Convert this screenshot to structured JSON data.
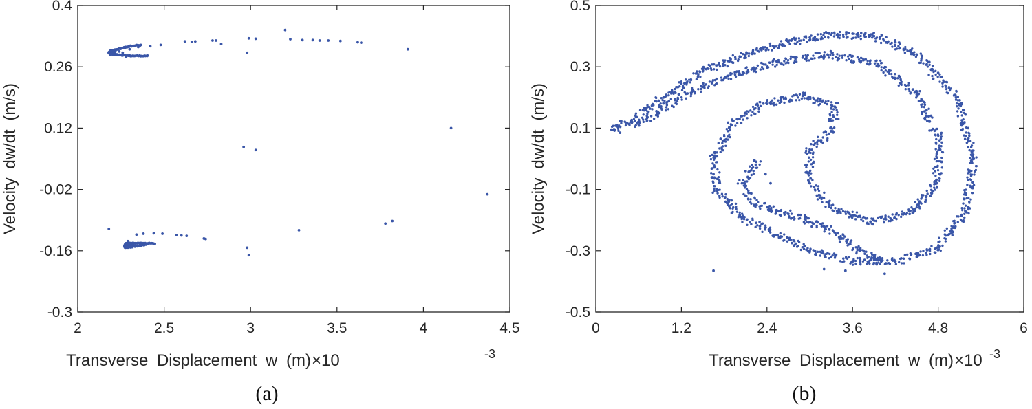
{
  "chart_data": [
    {
      "type": "scatter",
      "panel_label": "(a)",
      "xlabel": "Transverse  Displacement  w  (m)",
      "x_exponent_label": "×10",
      "x_exponent_power": "-3",
      "ylabel": "Velocity  dw/dt  (m/s)",
      "xlim": [
        2,
        4.5
      ],
      "ylim": [
        -0.3,
        0.4
      ],
      "xticks": [
        "2",
        "2.5",
        "3",
        "3.5",
        "4",
        "4.5"
      ],
      "yticks": [
        "-0.3",
        "-0.16",
        "-0.02",
        "0.12",
        "0.26",
        "0.4"
      ],
      "marker_color": "#3a56a8",
      "points": [
        [
          2.26,
          0.292
        ],
        [
          2.24,
          0.295
        ],
        [
          2.2,
          0.292
        ],
        [
          2.22,
          0.288
        ],
        [
          2.28,
          0.283
        ],
        [
          2.3,
          0.3
        ],
        [
          2.35,
          0.305
        ],
        [
          2.42,
          0.307
        ],
        [
          2.48,
          0.31
        ],
        [
          2.62,
          0.318
        ],
        [
          2.66,
          0.317
        ],
        [
          2.68,
          0.318
        ],
        [
          2.78,
          0.32
        ],
        [
          2.8,
          0.32
        ],
        [
          2.83,
          0.312
        ],
        [
          2.99,
          0.325
        ],
        [
          3.03,
          0.324
        ],
        [
          3.2,
          0.344
        ],
        [
          3.23,
          0.323
        ],
        [
          3.3,
          0.321
        ],
        [
          3.36,
          0.321
        ],
        [
          3.4,
          0.32
        ],
        [
          3.45,
          0.32
        ],
        [
          3.52,
          0.319
        ],
        [
          3.62,
          0.316
        ],
        [
          3.64,
          0.315
        ],
        [
          3.91,
          0.3
        ],
        [
          2.98,
          0.292
        ],
        [
          4.16,
          0.12
        ],
        [
          2.96,
          0.077
        ],
        [
          3.03,
          0.07
        ],
        [
          4.37,
          -0.031
        ],
        [
          2.18,
          -0.11
        ],
        [
          3.28,
          -0.113
        ],
        [
          3.78,
          -0.098
        ],
        [
          3.82,
          -0.092
        ],
        [
          2.34,
          -0.123
        ],
        [
          2.38,
          -0.121
        ],
        [
          2.44,
          -0.12
        ],
        [
          2.49,
          -0.121
        ],
        [
          2.57,
          -0.124
        ],
        [
          2.6,
          -0.125
        ],
        [
          2.63,
          -0.126
        ],
        [
          2.73,
          -0.132
        ],
        [
          2.74,
          -0.133
        ],
        [
          2.98,
          -0.153
        ],
        [
          2.99,
          -0.17
        ],
        [
          2.29,
          -0.138
        ],
        [
          2.32,
          -0.142
        ]
      ],
      "clusters": [
        {
          "kind": "upper-loop",
          "tip_x": 2.18,
          "tip_y": 0.292,
          "top": [
            [
              2.19,
              0.296
            ],
            [
              2.22,
              0.299
            ],
            [
              2.26,
              0.303
            ],
            [
              2.3,
              0.307
            ],
            [
              2.34,
              0.309
            ],
            [
              2.37,
              0.309
            ]
          ],
          "bottom": [
            [
              2.19,
              0.29
            ],
            [
              2.22,
              0.288
            ],
            [
              2.26,
              0.286
            ],
            [
              2.3,
              0.285
            ],
            [
              2.34,
              0.285
            ],
            [
              2.38,
              0.285
            ],
            [
              2.41,
              0.285
            ]
          ]
        },
        {
          "kind": "lower-loop",
          "tip_x": 2.27,
          "tip_y": -0.148,
          "top": [
            [
              2.28,
              -0.142
            ],
            [
              2.3,
              -0.143
            ],
            [
              2.33,
              -0.143
            ],
            [
              2.37,
              -0.143
            ],
            [
              2.41,
              -0.143
            ],
            [
              2.45,
              -0.144
            ]
          ],
          "bottom": [
            [
              2.28,
              -0.152
            ],
            [
              2.3,
              -0.152
            ],
            [
              2.33,
              -0.15
            ],
            [
              2.36,
              -0.148
            ],
            [
              2.4,
              -0.146
            ]
          ]
        }
      ]
    },
    {
      "type": "scatter",
      "panel_label": "(b)",
      "xlabel": "Transverse  Displacement  w  (m)",
      "x_exponent_label": "×10",
      "x_exponent_power": "-3",
      "ylabel": "Velocity  dw/dt  (m/s)",
      "xlim": [
        0,
        6
      ],
      "ylim": [
        -0.5,
        0.5
      ],
      "xticks": [
        "0",
        "1.2",
        "2.4",
        "3.6",
        "4.8",
        "6"
      ],
      "yticks": [
        "-0.5",
        "-0.3",
        "-0.1",
        "0.1",
        "0.3",
        "0.5"
      ],
      "marker_color": "#3a56a8",
      "points": [
        [
          0.22,
          0.095
        ],
        [
          0.34,
          0.085
        ],
        [
          0.5,
          0.125
        ],
        [
          0.7,
          0.165
        ],
        [
          0.95,
          0.2
        ],
        [
          1.2,
          0.245
        ],
        [
          1.5,
          0.285
        ],
        [
          1.8,
          0.315
        ],
        [
          2.1,
          0.34
        ],
        [
          2.4,
          0.36
        ],
        [
          2.7,
          0.38
        ],
        [
          3.0,
          0.395
        ],
        [
          3.3,
          0.405
        ],
        [
          3.6,
          0.408
        ],
        [
          3.9,
          0.4
        ],
        [
          4.2,
          0.38
        ],
        [
          4.5,
          0.34
        ],
        [
          4.8,
          0.28
        ],
        [
          5.05,
          0.2
        ],
        [
          5.22,
          0.1
        ],
        [
          5.3,
          0.0
        ],
        [
          5.28,
          -0.09
        ],
        [
          5.18,
          -0.17
        ],
        [
          5.0,
          -0.24
        ],
        [
          4.78,
          -0.29
        ],
        [
          4.5,
          -0.32
        ],
        [
          4.2,
          -0.335
        ],
        [
          3.9,
          -0.34
        ],
        [
          3.6,
          -0.335
        ],
        [
          3.3,
          -0.32
        ],
        [
          3.0,
          -0.3
        ],
        [
          2.75,
          -0.275
        ],
        [
          2.55,
          -0.25
        ],
        [
          2.3,
          -0.22
        ],
        [
          2.05,
          -0.19
        ],
        [
          1.85,
          -0.15
        ],
        [
          1.7,
          -0.1
        ],
        [
          1.65,
          -0.05
        ],
        [
          1.66,
          0.01
        ],
        [
          1.75,
          0.065
        ],
        [
          1.9,
          0.11
        ],
        [
          2.1,
          0.15
        ],
        [
          2.35,
          0.18
        ],
        [
          2.6,
          0.2
        ],
        [
          2.9,
          0.205
        ],
        [
          3.15,
          0.195
        ],
        [
          3.35,
          0.17
        ],
        [
          3.4,
          0.13
        ],
        [
          3.3,
          0.09
        ],
        [
          3.15,
          0.06
        ],
        [
          3.0,
          0.03
        ],
        [
          2.95,
          -0.02
        ],
        [
          2.98,
          -0.07
        ],
        [
          3.1,
          -0.12
        ],
        [
          3.3,
          -0.16
        ],
        [
          3.55,
          -0.19
        ],
        [
          3.85,
          -0.205
        ],
        [
          4.15,
          -0.2
        ],
        [
          4.4,
          -0.18
        ],
        [
          4.62,
          -0.14
        ],
        [
          4.78,
          -0.08
        ],
        [
          4.85,
          -0.01
        ],
        [
          4.82,
          0.06
        ],
        [
          4.7,
          0.14
        ],
        [
          4.5,
          0.21
        ],
        [
          4.25,
          0.27
        ],
        [
          3.95,
          0.31
        ],
        [
          3.6,
          0.335
        ],
        [
          3.25,
          0.34
        ],
        [
          2.9,
          0.33
        ],
        [
          2.55,
          0.315
        ],
        [
          2.2,
          0.295
        ],
        [
          1.85,
          0.27
        ],
        [
          1.5,
          0.235
        ],
        [
          1.15,
          0.195
        ],
        [
          0.85,
          0.155
        ],
        [
          0.55,
          0.105
        ],
        [
          1.65,
          -0.365
        ],
        [
          2.25,
          -0.01
        ],
        [
          2.1,
          -0.04
        ],
        [
          2.05,
          -0.08
        ],
        [
          2.1,
          -0.12
        ],
        [
          2.25,
          -0.15
        ],
        [
          2.45,
          -0.17
        ],
        [
          2.7,
          -0.18
        ],
        [
          2.95,
          -0.19
        ],
        [
          3.2,
          -0.22
        ],
        [
          3.45,
          -0.26
        ],
        [
          3.7,
          -0.3
        ],
        [
          3.95,
          -0.33
        ],
        [
          4.05,
          -0.375
        ],
        [
          3.5,
          -0.365
        ],
        [
          3.2,
          -0.36
        ],
        [
          2.45,
          -0.08
        ],
        [
          2.38,
          -0.05
        ]
      ],
      "bands": [
        {
          "kind": "outer-spiral",
          "path": [
            [
              0.22,
              0.095
            ],
            [
              0.5,
              0.125
            ],
            [
              0.95,
              0.2
            ],
            [
              1.5,
              0.285
            ],
            [
              2.1,
              0.34
            ],
            [
              2.7,
              0.38
            ],
            [
              3.3,
              0.405
            ],
            [
              3.9,
              0.4
            ],
            [
              4.5,
              0.34
            ],
            [
              5.05,
              0.2
            ],
            [
              5.3,
              0.0
            ],
            [
              5.18,
              -0.17
            ],
            [
              4.78,
              -0.29
            ],
            [
              4.2,
              -0.335
            ],
            [
              3.6,
              -0.335
            ],
            [
              3.0,
              -0.3
            ],
            [
              2.55,
              -0.25
            ],
            [
              2.05,
              -0.19
            ],
            [
              1.7,
              -0.1
            ],
            [
              1.66,
              0.01
            ],
            [
              1.9,
              0.11
            ],
            [
              2.35,
              0.18
            ],
            [
              2.9,
              0.205
            ],
            [
              3.35,
              0.17
            ],
            [
              3.3,
              0.09
            ],
            [
              3.0,
              0.03
            ],
            [
              2.98,
              -0.07
            ],
            [
              3.3,
              -0.16
            ],
            [
              3.85,
              -0.205
            ],
            [
              4.4,
              -0.18
            ],
            [
              4.78,
              -0.08
            ],
            [
              4.82,
              0.06
            ],
            [
              4.5,
              0.21
            ],
            [
              3.95,
              0.31
            ],
            [
              3.25,
              0.34
            ],
            [
              2.55,
              0.315
            ],
            [
              1.85,
              0.27
            ],
            [
              1.15,
              0.195
            ],
            [
              0.55,
              0.105
            ]
          ]
        },
        {
          "kind": "inner-hook",
          "path": [
            [
              2.25,
              -0.01
            ],
            [
              2.05,
              -0.08
            ],
            [
              2.25,
              -0.15
            ],
            [
              2.7,
              -0.18
            ],
            [
              3.2,
              -0.22
            ],
            [
              3.7,
              -0.3
            ],
            [
              4.05,
              -0.34
            ]
          ]
        }
      ]
    }
  ]
}
